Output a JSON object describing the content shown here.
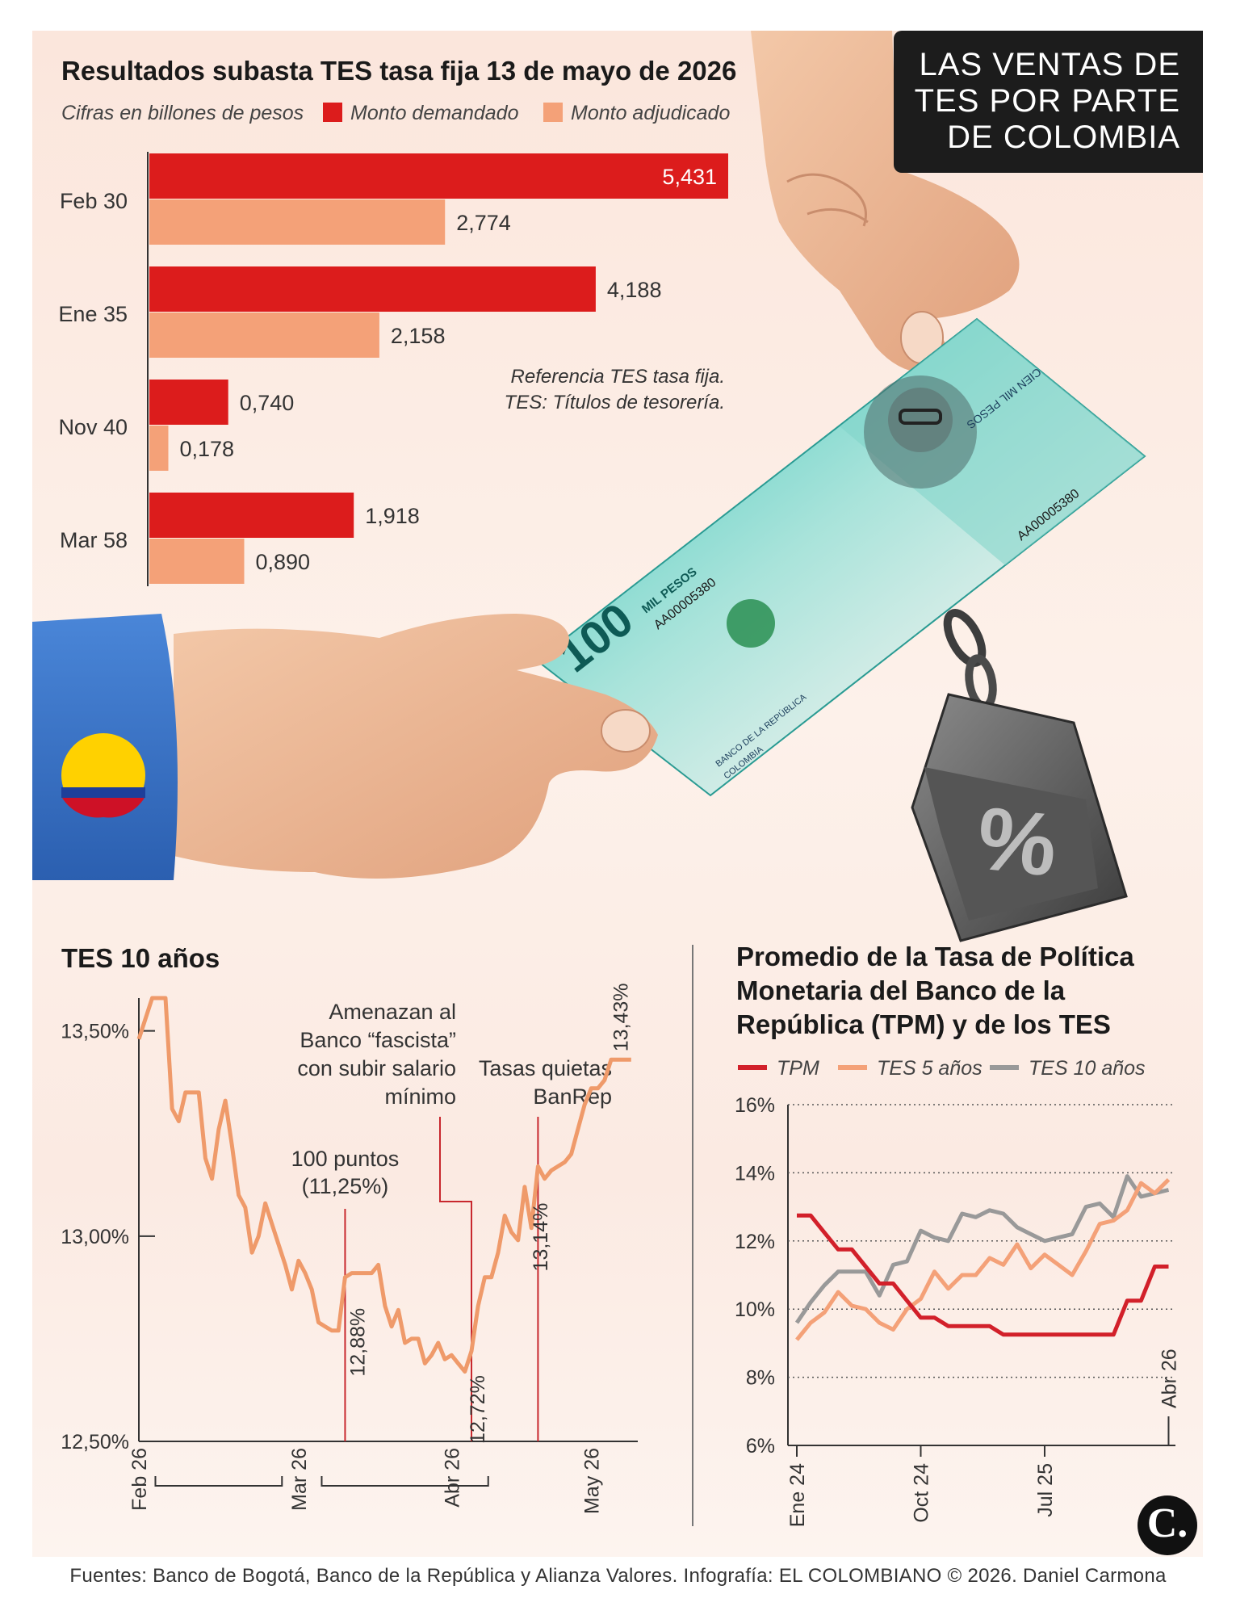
{
  "headline": [
    "LAS VENTAS DE",
    "TES POR PARTE",
    "DE COLOMBIA"
  ],
  "footer": "Fuentes: Banco de Bogotá, Banco de la República y Alianza Valores. Infografía: EL COLOMBIANO © 2026. Daniel Carmona",
  "logo": "C.",
  "illustration": {
    "banknote_value": "100",
    "banknote_unit": "MIL PESOS",
    "banknote_serial": "AA00005380",
    "banknote_issuer": "BANCO DE LA REPÚBLICA",
    "banknote_country": "COLOMBIA",
    "banknote_back_text": "CIEN MIL PESOS",
    "weight_symbol": "%"
  },
  "colors": {
    "demanded": "#dc1c1c",
    "awarded": "#f4a178",
    "tpm": "#d2202a",
    "tes5": "#f4a178",
    "tes10": "#999999",
    "line": "#ef9a6a",
    "annotation_line": "#c8282e"
  },
  "chart_data": [
    {
      "type": "bar",
      "orientation": "horizontal",
      "title": "Resultados subasta TES tasa fija 13 de mayo de 2026",
      "subtitle": "Cifras en billones de pesos",
      "categories": [
        "Feb 30",
        "Ene 35",
        "Nov 40",
        "Mar 58"
      ],
      "series": [
        {
          "name": "Monto demandado",
          "values": [
            5.431,
            4.188,
            0.74,
            1.918
          ],
          "labels": [
            "5,431",
            "4,188",
            "0,740",
            "1,918"
          ]
        },
        {
          "name": "Monto adjudicado",
          "values": [
            2.774,
            2.158,
            0.178,
            0.89
          ],
          "labels": [
            "2,774",
            "2,158",
            "0,178",
            "0,890"
          ]
        }
      ],
      "notes": [
        "Referencia TES tasa fija.",
        "TES: Títulos de tesorería."
      ],
      "xlim": [
        0,
        5.431
      ],
      "legend": "top"
    },
    {
      "type": "line",
      "title": "TES 10 años",
      "y_ticks": [
        "13,50%",
        "13,00%",
        "12,50%"
      ],
      "y_tick_values": [
        13.5,
        13.0,
        12.5
      ],
      "ylim": [
        12.5,
        13.58
      ],
      "x_ticks": [
        "Feb 26",
        "Mar 26",
        "Abr 26",
        "May 26"
      ],
      "x_tick_positions": [
        0,
        24,
        47,
        68
      ],
      "xlim": [
        0,
        75
      ],
      "series": [
        {
          "name": "",
          "x": [
            0,
            2,
            3,
            4,
            5,
            6,
            7,
            8,
            9,
            10,
            11,
            12,
            13,
            14,
            15,
            16,
            17,
            18,
            19,
            20,
            21,
            22,
            23,
            24,
            25,
            26,
            27,
            28,
            29,
            30,
            31,
            32,
            33,
            34,
            35,
            36,
            37,
            38,
            39,
            40,
            41,
            42,
            43,
            44,
            45,
            46,
            47,
            48,
            49,
            50,
            51,
            52,
            53,
            54,
            55,
            56,
            57,
            58,
            59,
            60,
            61,
            62,
            63,
            64,
            65,
            66,
            67,
            68,
            69,
            70,
            71,
            72,
            73,
            74
          ],
          "y": [
            13.48,
            13.58,
            13.58,
            13.58,
            13.31,
            13.28,
            13.35,
            13.35,
            13.35,
            13.19,
            13.14,
            13.26,
            13.33,
            13.22,
            13.1,
            13.07,
            12.96,
            13.0,
            13.08,
            13.03,
            12.98,
            12.93,
            12.87,
            12.94,
            12.91,
            12.87,
            12.79,
            12.78,
            12.77,
            12.77,
            12.9,
            12.91,
            12.91,
            12.91,
            12.91,
            12.93,
            12.83,
            12.78,
            12.82,
            12.74,
            12.75,
            12.75,
            12.69,
            12.71,
            12.74,
            12.7,
            12.71,
            12.69,
            12.67,
            12.72,
            12.83,
            12.9,
            12.9,
            12.96,
            13.05,
            13.01,
            12.99,
            13.12,
            13.02,
            13.17,
            13.14,
            13.16,
            13.17,
            13.18,
            13.2,
            13.26,
            13.32,
            13.36,
            13.36,
            13.38,
            13.43,
            13.43,
            13.43,
            13.43
          ]
        }
      ],
      "data_labels": [
        {
          "x": 31,
          "y": 12.88,
          "text": "12,88%"
        },
        {
          "x": 49,
          "y": 12.72,
          "text": "12,72%"
        },
        {
          "x": 58,
          "y": 13.14,
          "text": "13,14%"
        },
        {
          "x": 72,
          "y": 13.43,
          "text": "13,43%"
        }
      ],
      "annotations": [
        {
          "text": [
            "100 puntos",
            "(11,25%)"
          ],
          "x": 31
        },
        {
          "text": [
            "Amenazan al",
            "Banco “fascista”",
            "con subir salario",
            "mínimo"
          ],
          "x": 50
        },
        {
          "text": [
            "Tasas quietas",
            "BanRep"
          ],
          "x": 60
        }
      ]
    },
    {
      "type": "line",
      "title": "Promedio de la Tasa de Política Monetaria del Banco de la República (TPM) y de los TES",
      "y_ticks": [
        "16%",
        "14%",
        "12%",
        "10%",
        "8%",
        "6%"
      ],
      "y_tick_values": [
        16,
        14,
        12,
        10,
        8,
        6
      ],
      "ylim": [
        6,
        16
      ],
      "x_ticks": [
        "Ene 24",
        "Oct 24",
        "Jul 25",
        "Abr 26"
      ],
      "x_tick_positions": [
        0,
        9,
        18,
        27
      ],
      "xlim": [
        0,
        27.5
      ],
      "grid": "dotted horizontal",
      "legend": "top",
      "series": [
        {
          "name": "TPM",
          "x": [
            0,
            1,
            2,
            3,
            4,
            5,
            6,
            7,
            8,
            9,
            10,
            11,
            12,
            13,
            14,
            15,
            16,
            17,
            18,
            19,
            20,
            21,
            22,
            23,
            24,
            25,
            26,
            27
          ],
          "y": [
            12.75,
            12.75,
            12.25,
            11.75,
            11.75,
            11.25,
            10.75,
            10.75,
            10.25,
            9.75,
            9.75,
            9.5,
            9.5,
            9.5,
            9.5,
            9.25,
            9.25,
            9.25,
            9.25,
            9.25,
            9.25,
            9.25,
            9.25,
            9.25,
            10.25,
            10.25,
            11.25,
            11.25
          ]
        },
        {
          "name": "TES 5 años",
          "x": [
            0,
            1,
            2,
            3,
            4,
            5,
            6,
            7,
            8,
            9,
            10,
            11,
            12,
            13,
            14,
            15,
            16,
            17,
            18,
            19,
            20,
            21,
            22,
            23,
            24,
            25,
            26,
            27
          ],
          "y": [
            9.1,
            9.6,
            9.9,
            10.5,
            10.1,
            10.0,
            9.6,
            9.4,
            10.0,
            10.3,
            11.1,
            10.6,
            11.0,
            11.0,
            11.5,
            11.3,
            11.9,
            11.2,
            11.6,
            11.3,
            11.0,
            11.7,
            12.5,
            12.6,
            12.9,
            13.7,
            13.4,
            13.8
          ]
        },
        {
          "name": "TES 10 años",
          "x": [
            0,
            1,
            2,
            3,
            4,
            5,
            6,
            7,
            8,
            9,
            10,
            11,
            12,
            13,
            14,
            15,
            16,
            17,
            18,
            19,
            20,
            21,
            22,
            23,
            24,
            25,
            26,
            27
          ],
          "y": [
            9.6,
            10.2,
            10.7,
            11.1,
            11.1,
            11.1,
            10.4,
            11.3,
            11.4,
            12.3,
            12.1,
            12.0,
            12.8,
            12.7,
            12.9,
            12.8,
            12.4,
            12.2,
            12.0,
            12.1,
            12.2,
            13.0,
            13.1,
            12.7,
            13.9,
            13.3,
            13.4,
            13.5
          ]
        }
      ]
    }
  ]
}
